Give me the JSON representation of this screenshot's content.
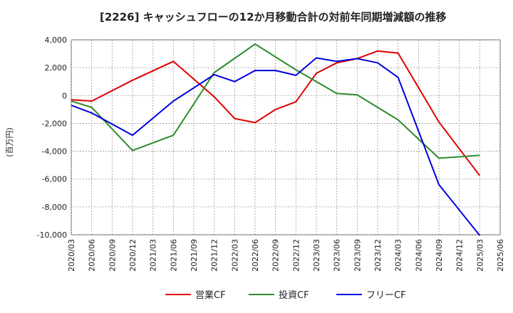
{
  "chart_data": {
    "type": "line",
    "title": "[2226]  キャッシュフローの12か月移動合計の対前年同期増減額の推移",
    "ylabel": "(百万円)",
    "xlabel": "",
    "ylim": [
      -10000,
      4000
    ],
    "yticks": [
      4000,
      2000,
      0,
      -2000,
      -4000,
      -6000,
      -8000,
      -10000
    ],
    "ytick_labels": [
      "4,000",
      "2,000",
      "0",
      "-2,000",
      "-4,000",
      "-6,000",
      "-8,000",
      "-10,000"
    ],
    "x": [
      "2020/03",
      "2020/06",
      "2020/09",
      "2020/12",
      "2021/03",
      "2021/06",
      "2021/09",
      "2021/12",
      "2022/03",
      "2022/06",
      "2022/09",
      "2022/12",
      "2023/03",
      "2023/06",
      "2023/09",
      "2023/12",
      "2024/03",
      "2024/06",
      "2024/09",
      "2024/12",
      "2025/03",
      "2025/06"
    ],
    "grid": true,
    "legend_position": "bottom",
    "series": [
      {
        "name": "営業CF",
        "color": "#e00000",
        "values": [
          -300,
          -400,
          null,
          1100,
          null,
          2450,
          null,
          -100,
          -1650,
          -1950,
          -1000,
          -450,
          1600,
          2350,
          2650,
          3200,
          3050,
          null,
          -1900,
          null,
          -5750,
          null
        ]
      },
      {
        "name": "投資CF",
        "color": "#2e8b2e",
        "values": [
          -400,
          -850,
          null,
          -3950,
          null,
          -2850,
          null,
          1650,
          null,
          3700,
          null,
          1850,
          null,
          150,
          50,
          null,
          -1750,
          null,
          -4500,
          null,
          -4300,
          null
        ]
      },
      {
        "name": "フリーCF",
        "color": "#0000dd",
        "values": [
          -700,
          -1250,
          null,
          -2850,
          null,
          -400,
          null,
          1500,
          1000,
          1800,
          1800,
          1450,
          2700,
          2450,
          2650,
          2350,
          1300,
          null,
          -6400,
          null,
          -10050,
          null
        ]
      }
    ]
  }
}
